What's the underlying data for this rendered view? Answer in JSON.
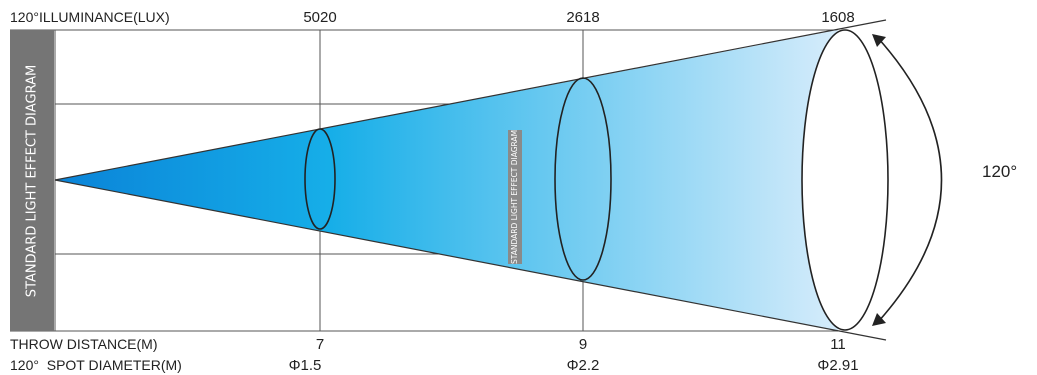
{
  "header": {
    "illuminance_label": "120°ILLUMINANCE(LUX)",
    "illuminance_values": [
      "5020",
      "2618",
      "1608"
    ]
  },
  "side_panel": {
    "label": "STANDARD LIGHT EFFECT DIAGRAM",
    "color": "#757575"
  },
  "center_tag": {
    "label": "STANDARD LIGHT EFFECT DIAGRAM",
    "color": "#8a8a8a"
  },
  "beam": {
    "angle_label": "120°",
    "color_near": "#0a83d8",
    "color_far": "#d6ecfb"
  },
  "footer": {
    "distance_label": "THROW DISTANCE(M)",
    "distance_values": [
      "7",
      "9",
      "11"
    ],
    "diameter_label": "120°  SPOT DIAMETER(M)",
    "diameter_values": [
      "Φ1.5",
      "Φ2.2",
      "Φ2.91"
    ]
  }
}
